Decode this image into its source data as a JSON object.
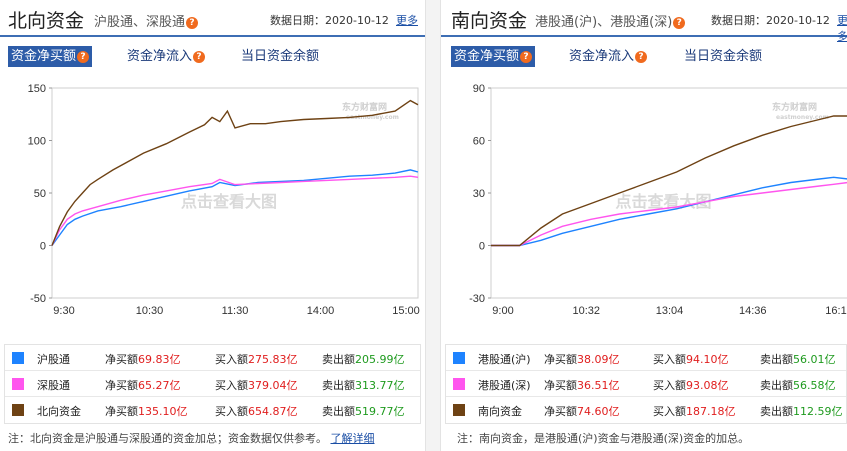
{
  "north": {
    "title": "北向资金",
    "subtitle": "沪股通、深股通",
    "date_label": "数据日期：2020-10-12",
    "more": "更多",
    "tabs": [
      {
        "label": "资金净买额",
        "active": true
      },
      {
        "label": "资金净流入",
        "active": false
      },
      {
        "label": "当日资金余额",
        "active": false
      }
    ],
    "watermark_logo": "东方财富网",
    "watermark_logo_url": "eastmoney.com",
    "watermark_text": "点击查看大图",
    "legend": [
      {
        "name": "沪股通",
        "net_label": "净买额",
        "net_value": "69.83亿",
        "buy_label": "买入额",
        "buy_value": "275.83亿",
        "sell_label": "卖出额",
        "sell_value": "205.99亿",
        "color": "#1e83ff"
      },
      {
        "name": "深股通",
        "net_label": "净买额",
        "net_value": "65.27亿",
        "buy_label": "买入额",
        "buy_value": "379.04亿",
        "sell_label": "卖出额",
        "sell_value": "313.77亿",
        "color": "#ff55ee"
      },
      {
        "name": "北向资金",
        "net_label": "净买额",
        "net_value": "135.10亿",
        "buy_label": "买入额",
        "buy_value": "654.87亿",
        "sell_label": "卖出额",
        "sell_value": "519.77亿",
        "color": "#6e4214"
      }
    ],
    "note": "注：北向资金是沪股通与深股通的资金加总；资金数据仅供参考。",
    "note_link": "了解详细"
  },
  "south": {
    "title": "南向资金",
    "subtitle": "港股通(沪)、港股通(深)",
    "date_label": "数据日期：2020-10-12",
    "more": "更多",
    "tabs": [
      {
        "label": "资金净买额",
        "active": true
      },
      {
        "label": "资金净流入",
        "active": false
      },
      {
        "label": "当日资金余额",
        "active": false
      }
    ],
    "watermark_logo": "东方财富网",
    "watermark_logo_url": "eastmoney.com",
    "watermark_text": "点击查看大图",
    "legend": [
      {
        "name": "港股通(沪)",
        "net_label": "净买额",
        "net_value": "38.09亿",
        "buy_label": "买入额",
        "buy_value": "94.10亿",
        "sell_label": "卖出额",
        "sell_value": "56.01亿",
        "color": "#1e83ff"
      },
      {
        "name": "港股通(深)",
        "net_label": "净买额",
        "net_value": "36.51亿",
        "buy_label": "买入额",
        "buy_value": "93.08亿",
        "sell_label": "卖出额",
        "sell_value": "56.58亿",
        "color": "#ff55ee"
      },
      {
        "name": "南向资金",
        "net_label": "净买额",
        "net_value": "74.60亿",
        "buy_label": "买入额",
        "buy_value": "187.18亿",
        "sell_label": "卖出额",
        "sell_value": "112.59亿",
        "color": "#6e4214"
      }
    ],
    "note": "注：南向资金，是港股通(沪)资金与港股通(深)资金的加总。"
  },
  "chart_data": [
    {
      "type": "line",
      "x_ticks": [
        "9:30",
        "10:30",
        "11:30",
        "14:00",
        "15:00"
      ],
      "y_ticks": [
        "150",
        "100",
        "50",
        "0",
        "-50"
      ],
      "ylim": [
        -50,
        150
      ],
      "xlim": [
        0,
        240
      ],
      "grid": false,
      "series": [
        {
          "name": "沪股通",
          "color": "#1e83ff",
          "x": [
            0,
            5,
            10,
            15,
            20,
            30,
            45,
            60,
            75,
            90,
            105,
            110,
            120,
            135,
            150,
            165,
            180,
            195,
            210,
            225,
            235,
            240
          ],
          "y": [
            0,
            10,
            20,
            25,
            28,
            33,
            37,
            42,
            47,
            52,
            56,
            60,
            57,
            60,
            61,
            62,
            64,
            66,
            67,
            69,
            72,
            70
          ]
        },
        {
          "name": "深股通",
          "color": "#ff55ee",
          "x": [
            0,
            5,
            10,
            15,
            20,
            30,
            45,
            60,
            75,
            90,
            105,
            110,
            120,
            135,
            150,
            165,
            180,
            195,
            210,
            225,
            235,
            240
          ],
          "y": [
            0,
            15,
            25,
            30,
            33,
            37,
            43,
            48,
            52,
            56,
            59,
            63,
            58,
            59,
            60,
            61,
            62,
            63,
            64,
            65,
            66,
            65
          ]
        },
        {
          "name": "北向资金",
          "color": "#6e4214",
          "x": [
            0,
            5,
            10,
            15,
            20,
            25,
            30,
            40,
            50,
            60,
            75,
            90,
            100,
            105,
            110,
            115,
            120,
            130,
            140,
            150,
            165,
            180,
            195,
            210,
            225,
            235,
            240
          ],
          "y": [
            0,
            18,
            32,
            42,
            50,
            58,
            63,
            72,
            80,
            88,
            97,
            108,
            115,
            122,
            118,
            128,
            112,
            116,
            116,
            118,
            120,
            121,
            122,
            124,
            128,
            138,
            134
          ]
        }
      ]
    },
    {
      "type": "line",
      "x_ticks": [
        "9:00",
        "10:32",
        "13:04",
        "14:36",
        "16:1"
      ],
      "y_ticks": [
        "90",
        "60",
        "30",
        "0",
        "-30"
      ],
      "ylim": [
        -30,
        90
      ],
      "xlim": [
        0,
        250
      ],
      "grid": false,
      "series": [
        {
          "name": "港股通(沪)",
          "color": "#1e83ff",
          "x": [
            0,
            20,
            35,
            50,
            70,
            90,
            110,
            130,
            150,
            170,
            190,
            210,
            230,
            240,
            250
          ],
          "y": [
            0,
            0,
            3,
            7,
            11,
            15,
            18,
            21,
            25,
            29,
            33,
            36,
            38,
            39,
            38
          ]
        },
        {
          "name": "港股通(深)",
          "color": "#ff55ee",
          "x": [
            0,
            20,
            35,
            50,
            70,
            90,
            110,
            130,
            150,
            170,
            190,
            210,
            230,
            240,
            250
          ],
          "y": [
            0,
            0,
            6,
            11,
            15,
            18,
            20,
            22,
            25,
            28,
            30,
            32,
            34,
            35,
            36
          ]
        },
        {
          "name": "南向资金",
          "color": "#6e4214",
          "x": [
            0,
            20,
            35,
            50,
            70,
            90,
            110,
            130,
            150,
            170,
            190,
            210,
            230,
            240,
            250
          ],
          "y": [
            0,
            0,
            10,
            18,
            24,
            30,
            36,
            42,
            50,
            57,
            63,
            68,
            72,
            74,
            74
          ]
        }
      ]
    }
  ]
}
